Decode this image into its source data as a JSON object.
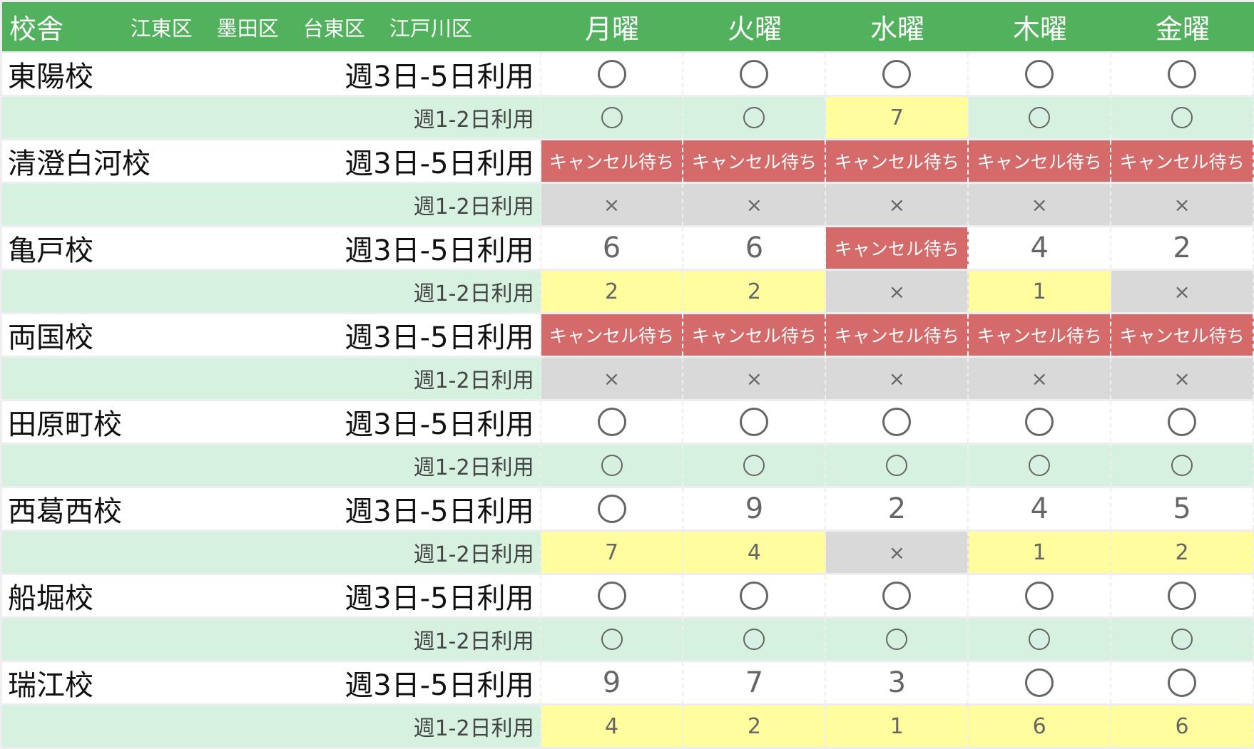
{
  "header": {
    "title": "校舎",
    "wards": [
      "江東区",
      "墨田区",
      "台東区",
      "江戸川区"
    ],
    "days": [
      "月曜",
      "火曜",
      "水曜",
      "木曜",
      "金曜"
    ]
  },
  "symbols": {
    "available": "circle-icon",
    "full": "×",
    "waitlist": "キャンセル待ち"
  },
  "colors": {
    "header": "#52b15c",
    "sub_row": "#d6f1e0",
    "few_left": "#fffd9e",
    "waitlist": "#d46b6a",
    "full": "#d9d9d9"
  },
  "plans": {
    "main": "週3日-5日利用",
    "sub": "週1-2日利用"
  },
  "schools": [
    {
      "name": "東陽校",
      "main": [
        "○",
        "○",
        "○",
        "○",
        "○"
      ],
      "sub": [
        "○",
        "○",
        "7",
        "○",
        "○"
      ]
    },
    {
      "name": "清澄白河校",
      "main": [
        "キャンセル待ち",
        "キャンセル待ち",
        "キャンセル待ち",
        "キャンセル待ち",
        "キャンセル待ち"
      ],
      "sub": [
        "×",
        "×",
        "×",
        "×",
        "×"
      ]
    },
    {
      "name": "亀戸校",
      "main": [
        "6",
        "6",
        "キャンセル待ち",
        "4",
        "2"
      ],
      "sub": [
        "2",
        "2",
        "×",
        "1",
        "×"
      ]
    },
    {
      "name": "両国校",
      "main": [
        "キャンセル待ち",
        "キャンセル待ち",
        "キャンセル待ち",
        "キャンセル待ち",
        "キャンセル待ち"
      ],
      "sub": [
        "×",
        "×",
        "×",
        "×",
        "×"
      ]
    },
    {
      "name": "田原町校",
      "main": [
        "○",
        "○",
        "○",
        "○",
        "○"
      ],
      "sub": [
        "○",
        "○",
        "○",
        "○",
        "○"
      ]
    },
    {
      "name": "西葛西校",
      "main": [
        "○",
        "9",
        "2",
        "4",
        "5"
      ],
      "sub": [
        "7",
        "4",
        "×",
        "1",
        "2"
      ]
    },
    {
      "name": "船堀校",
      "main": [
        "○",
        "○",
        "○",
        "○",
        "○"
      ],
      "sub": [
        "○",
        "○",
        "○",
        "○",
        "○"
      ]
    },
    {
      "name": "瑞江校",
      "main": [
        "9",
        "7",
        "3",
        "○",
        "○"
      ],
      "sub": [
        "4",
        "2",
        "1",
        "6",
        "6"
      ]
    }
  ]
}
